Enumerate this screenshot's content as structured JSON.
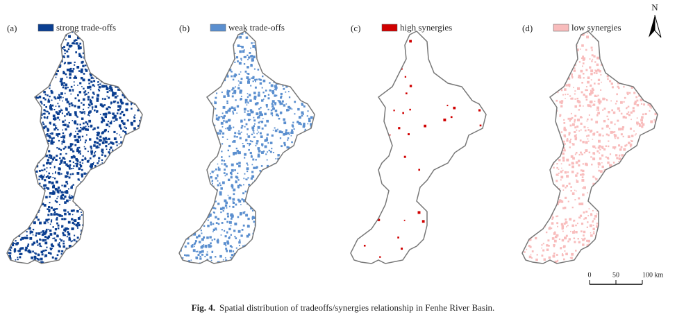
{
  "panels": [
    {
      "label": "(a)",
      "legend": "strong trade-offs",
      "color": "#0b3f91"
    },
    {
      "label": "(b)",
      "legend": "weak trade-offs",
      "color": "#5b8fcf"
    },
    {
      "label": "(c)",
      "legend": "high synergies",
      "color": "#d00000"
    },
    {
      "label": "(d)",
      "legend": "low synergies",
      "color": "#f8bcbc"
    }
  ],
  "north": "N",
  "scale_bar": {
    "labels": [
      "0",
      "50",
      "100 km"
    ]
  },
  "caption": {
    "label": "Fig. 4.",
    "text": "Spatial distribution of tradeoffs/synergies relationship in Fenhe River Basin."
  }
}
